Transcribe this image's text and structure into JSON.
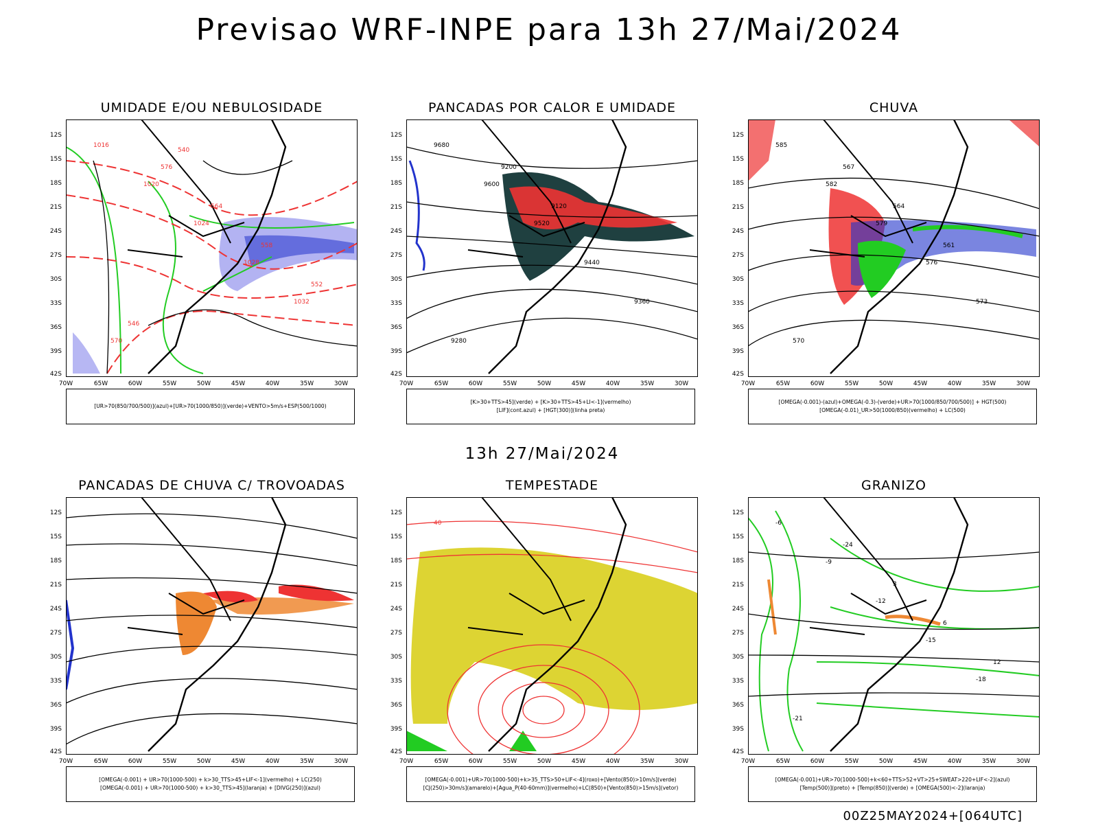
{
  "header": {
    "title": "Previsao WRF-INPE  para 13h 27/Mai/2024",
    "mid_title": "13h 27/Mai/2024",
    "run_stamp": "00Z25MAY2024+[064UTC]"
  },
  "axes": {
    "lat_ticks": [
      "12S",
      "15S",
      "18S",
      "21S",
      "24S",
      "27S",
      "30S",
      "33S",
      "36S",
      "39S",
      "42S"
    ],
    "lon_ticks": [
      "70W",
      "65W",
      "60W",
      "55W",
      "50W",
      "45W",
      "40W",
      "35W",
      "30W"
    ]
  },
  "panels": [
    {
      "id": "umidade",
      "title": "UMIDADE E/OU NEBULOSIDADE",
      "legend": [
        "[UR>70(850/700/500)](azul)+[UR>70(1000/850)](verde)+VENTO>5m/s+ESP(500/1000)"
      ],
      "contour_labels": [
        "1016",
        "1020",
        "1024",
        "1028",
        "1032",
        "570",
        "576",
        "564",
        "558",
        "552",
        "546",
        "540"
      ]
    },
    {
      "id": "pancadas-calor",
      "title": "PANCADAS POR CALOR E UMIDADE",
      "legend": [
        "[K>30+TTS>45](verde) + [K>30+TTS>45+LI<-1](vermelho)",
        "[LIF](cont.azul) + [HGT(300)](linha preta)"
      ],
      "contour_labels": [
        "9680",
        "9600",
        "9520",
        "9440",
        "9360",
        "9280",
        "9200",
        "9120"
      ]
    },
    {
      "id": "chuva",
      "title": "CHUVA",
      "legend": [
        "[OMEGA(-0.001)-(azul)+OMEGA(-0.3)-(verde)+UR>70(1000/850/700/500)] + HGT(500)",
        "[OMEGA(-0.01)_UR>50(1000/850)(vermelho) + LC(500)"
      ],
      "contour_labels": [
        "585",
        "582",
        "579",
        "576",
        "573",
        "570",
        "567",
        "564",
        "561"
      ]
    },
    {
      "id": "trovoadas",
      "title": "PANCADAS DE CHUVA C/ TROVOADAS",
      "legend": [
        "[OMEGA(-0.001) + UR>70(1000-500) + k>30_TTS>45+LIF<-1](vermelho) + LC(250)",
        "[OMEGA(-0.001) + UR>70(1000-500) + k>30_TTS>45](laranja) + [DIVG(250)](azul)"
      ],
      "contour_labels": []
    },
    {
      "id": "tempestade",
      "title": "TEMPESTADE",
      "legend": [
        "[OMEGA(-0.001)+UR>70(1000-500)+k>35_TTS>50+LIF<-4](roxo)+[Vento(850)>10m/s](verde)",
        "[CJ(250)>30m/s](amarelo)+[Agua_P(40-60mm)](vermelho)+LC(850)+[Vento(850)>15m/s](vetor)"
      ],
      "contour_labels": [
        "40"
      ]
    },
    {
      "id": "granizo",
      "title": "GRANIZO",
      "legend": [
        "[OMEGA(-0.001)+UR>70(1000-500)+k<60+TTS>52+VT>25+SWEAT>220+LIF<-2](azul)",
        "[Temp(500)](preto) + [Temp(850)](verde) + [OMEGA(500)<-2](laranja)"
      ],
      "contour_labels": [
        "-6",
        "-9",
        "-12",
        "-15",
        "-18",
        "-21",
        "-24",
        "3",
        "6",
        "12"
      ]
    }
  ],
  "colors": {
    "blue_shade": "#9999ee",
    "deep_blue": "#2233cc",
    "green": "#22cc22",
    "red": "#ee3333",
    "dark_teal": "#1f4040",
    "orange": "#ee8833",
    "yellow": "#ddd433",
    "black": "#000000"
  }
}
